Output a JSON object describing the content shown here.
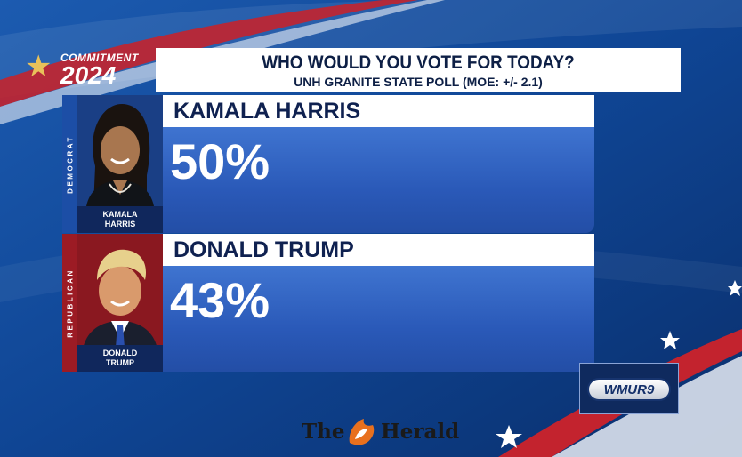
{
  "branding": {
    "commitment_label": "COMMITMENT",
    "year_label": "2024",
    "station_logo": "WMUR9",
    "watermark_the": "The",
    "watermark_name": "Herald"
  },
  "poll": {
    "question": "WHO WOULD YOU VOTE FOR TODAY?",
    "source": "UNH GRANITE STATE POLL (MOE: +/- 2.1)"
  },
  "candidates": [
    {
      "party_label": "DEMOCRAT",
      "name": "KAMALA HARRIS",
      "caption_line1": "KAMALA",
      "caption_line2": "HARRIS",
      "percent": "50%",
      "party_color": "#1c4ea6"
    },
    {
      "party_label": "REPUBLICAN",
      "name": "DONALD TRUMP",
      "caption_line1": "DONALD",
      "caption_line2": "TRUMP",
      "percent": "43%",
      "party_color": "#9c1b24"
    }
  ],
  "colors": {
    "background": "#0d3f86",
    "bar_blue": "#2a59b8",
    "header_text": "#0d1f45"
  }
}
